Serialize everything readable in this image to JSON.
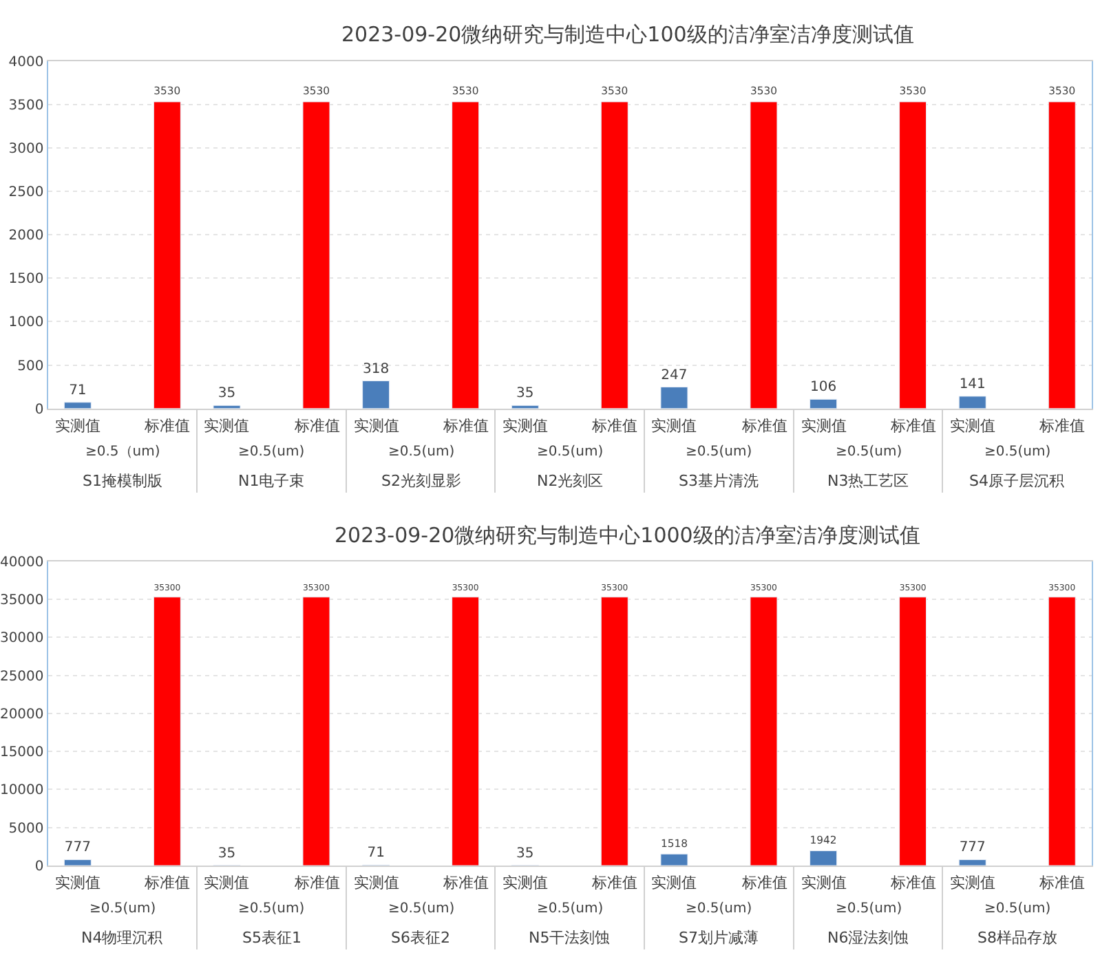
{
  "chart_data": [
    {
      "type": "bar",
      "title": "2023-09-20微纳研究与制造中心100级的洁净室洁净度测试值",
      "categories": [
        "S1掩模制版",
        "N1电子束",
        "S2光刻显影",
        "N2光刻区",
        "S3基片清洗",
        "N3热工艺区",
        "S4原子层沉积"
      ],
      "series": [
        {
          "name": "实测值",
          "color": "#4a7ebb",
          "values": [
            71,
            35,
            318,
            35,
            247,
            106,
            141
          ]
        },
        {
          "name": "标准值",
          "color": "#ff0000",
          "values": [
            3530,
            3530,
            3530,
            3530,
            3530,
            3530,
            3530
          ]
        }
      ],
      "annotations": [
        "≥0.5（um)",
        "≥0.5(um)",
        "≥0.5(um)",
        "≥0.5(um)",
        "≥0.5(um)",
        "≥0.5(um)",
        "≥0.5(um)"
      ],
      "ylim": [
        0,
        4000
      ],
      "yticks": [
        0,
        500,
        1000,
        1500,
        2000,
        2500,
        3000,
        3500,
        4000
      ],
      "grid": "y",
      "legend": false,
      "data_labels": true
    },
    {
      "type": "bar",
      "title": "2023-09-20微纳研究与制造中心1000级的洁净室洁净度测试值",
      "categories": [
        "N4物理沉积",
        "S5表征1",
        "S6表征2",
        "N5干法刻蚀",
        "S7划片减薄",
        "N6湿法刻蚀",
        "S8样品存放"
      ],
      "series": [
        {
          "name": "实测值",
          "color": "#4a7ebb",
          "values": [
            777,
            35,
            71,
            35,
            1518,
            1942,
            777
          ]
        },
        {
          "name": "标准值",
          "color": "#ff0000",
          "values": [
            35300,
            35300,
            35300,
            35300,
            35300,
            35300,
            35300
          ]
        }
      ],
      "annotations": [
        "≥0.5(um)",
        "≥0.5(um)",
        "≥0.5(um)",
        "≥0.5(um)",
        "≥0.5(um)",
        "≥0.5(um)",
        "≥0.5(um)"
      ],
      "ylim": [
        0,
        40000
      ],
      "yticks": [
        0,
        5000,
        10000,
        15000,
        20000,
        25000,
        30000,
        35000,
        40000
      ],
      "grid": "y",
      "legend": false,
      "data_labels": true
    }
  ]
}
